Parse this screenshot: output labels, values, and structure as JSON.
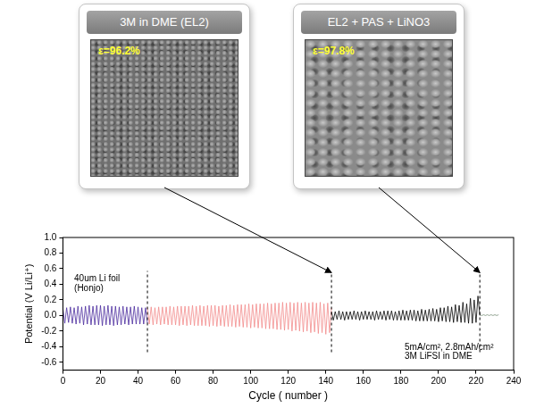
{
  "chart_data": {
    "type": "line",
    "x_label": "Cycle ( number )",
    "y_label": "Potential (V Li/Li⁺)",
    "xlim": [
      0,
      240
    ],
    "xticks": [
      0,
      20,
      40,
      60,
      80,
      100,
      120,
      140,
      160,
      180,
      200,
      220,
      240
    ],
    "ylim": [
      -0.7,
      1.0
    ],
    "yticks": [
      -0.6,
      -0.4,
      -0.2,
      {
        "value": 0,
        "label": "0.0"
      },
      0.2,
      0.4,
      0.6,
      0.8,
      {
        "value": 1,
        "label": "1.0"
      }
    ],
    "grid": false,
    "series": [
      {
        "color": "#4b2c9e",
        "x": [
          0,
          1,
          2,
          3,
          4,
          5,
          6,
          7,
          8,
          9,
          10,
          11,
          12,
          13,
          14,
          15,
          16,
          17,
          18,
          19,
          20,
          21,
          22,
          23,
          24,
          25,
          26,
          27,
          28,
          29,
          30,
          31,
          32,
          33,
          34,
          35,
          36,
          37,
          38,
          39,
          40,
          41,
          42,
          43,
          44,
          45
        ],
        "values": [
          0.09,
          -0.1,
          0.1,
          -0.09,
          0.11,
          -0.1,
          0.1,
          -0.11,
          0.12,
          -0.1,
          0.11,
          -0.12,
          0.12,
          -0.11,
          0.13,
          -0.12,
          0.12,
          -0.12,
          0.13,
          -0.12,
          0.13,
          -0.13,
          0.12,
          -0.12,
          0.13,
          -0.12,
          0.12,
          -0.13,
          0.12,
          -0.12,
          0.11,
          -0.12,
          0.12,
          -0.11,
          0.11,
          -0.12,
          0.11,
          -0.11,
          0.12,
          -0.11,
          0.11,
          -0.11,
          0.1,
          -0.11,
          0.1,
          -0.1
        ]
      },
      {
        "color": "#f28b8b",
        "x": [
          45,
          46,
          47,
          48,
          49,
          50,
          51,
          52,
          53,
          54,
          55,
          56,
          57,
          58,
          59,
          60,
          61,
          62,
          63,
          64,
          65,
          66,
          67,
          68,
          69,
          70,
          71,
          72,
          73,
          74,
          75,
          76,
          77,
          78,
          79,
          80,
          81,
          82,
          83,
          84,
          85,
          86,
          87,
          88,
          89,
          90,
          91,
          92,
          93,
          94,
          95,
          96,
          97,
          98,
          99,
          100,
          101,
          102,
          103,
          104,
          105,
          106,
          107,
          108,
          109,
          110,
          111,
          112,
          113,
          114,
          115,
          116,
          117,
          118,
          119,
          120,
          121,
          122,
          123,
          124,
          125,
          126,
          127,
          128,
          129,
          130,
          131,
          132,
          133,
          134,
          135,
          136,
          137,
          138,
          139,
          140,
          141,
          142,
          143
        ],
        "values": [
          0.1,
          -0.11,
          0.11,
          -0.12,
          0.1,
          -0.11,
          0.11,
          -0.12,
          0.11,
          -0.11,
          0.11,
          -0.12,
          0.12,
          -0.12,
          0.11,
          -0.12,
          0.12,
          -0.13,
          0.12,
          -0.12,
          0.12,
          -0.13,
          0.12,
          -0.12,
          0.13,
          -0.13,
          0.12,
          -0.13,
          0.13,
          -0.13,
          0.12,
          -0.13,
          0.13,
          -0.14,
          0.13,
          -0.13,
          0.13,
          -0.14,
          0.12,
          -0.13,
          0.13,
          -0.14,
          0.13,
          -0.14,
          0.14,
          -0.14,
          0.13,
          -0.15,
          0.14,
          -0.14,
          0.14,
          -0.15,
          0.14,
          -0.15,
          0.15,
          -0.16,
          0.14,
          -0.15,
          0.15,
          -0.16,
          0.15,
          -0.16,
          0.15,
          -0.17,
          0.16,
          -0.17,
          0.15,
          -0.17,
          0.16,
          -0.18,
          0.16,
          -0.18,
          0.17,
          -0.19,
          0.16,
          -0.18,
          0.17,
          -0.2,
          0.16,
          -0.19,
          0.17,
          -0.2,
          0.16,
          -0.21,
          0.17,
          -0.2,
          0.16,
          -0.22,
          0.17,
          -0.21,
          0.16,
          -0.23,
          0.17,
          -0.22,
          0.15,
          -0.24,
          0.16,
          -0.22,
          0.1
        ]
      },
      {
        "color": "#000000",
        "x": [
          143,
          144,
          145,
          146,
          147,
          148,
          149,
          150,
          151,
          152,
          153,
          154,
          155,
          156,
          157,
          158,
          159,
          160,
          161,
          162,
          163,
          164,
          165,
          166,
          167,
          168,
          169,
          170,
          171,
          172,
          173,
          174,
          175,
          176,
          177,
          178,
          179,
          180,
          181,
          182,
          183,
          184,
          185,
          186,
          187,
          188,
          189,
          190,
          191,
          192,
          193,
          194,
          195,
          196,
          197,
          198,
          199,
          200,
          201,
          202,
          203,
          204,
          205,
          206,
          207,
          208,
          209,
          210,
          211,
          212,
          213,
          214,
          215,
          216,
          217,
          218,
          219,
          220,
          221,
          222
        ],
        "values": [
          0.05,
          -0.06,
          0.05,
          -0.05,
          0.06,
          -0.05,
          0.05,
          -0.06,
          0.05,
          -0.05,
          0.05,
          -0.05,
          0.06,
          -0.05,
          0.05,
          -0.06,
          0.05,
          -0.05,
          0.06,
          -0.05,
          0.05,
          -0.05,
          0.05,
          -0.06,
          0.06,
          -0.05,
          0.05,
          -0.05,
          0.06,
          -0.06,
          0.06,
          -0.05,
          0.06,
          -0.06,
          0.05,
          -0.06,
          0.06,
          -0.06,
          0.07,
          -0.06,
          0.06,
          -0.06,
          0.07,
          -0.06,
          0.07,
          -0.07,
          0.06,
          -0.07,
          0.08,
          -0.07,
          0.07,
          -0.07,
          0.08,
          -0.07,
          0.09,
          -0.07,
          0.08,
          -0.08,
          0.1,
          -0.07,
          0.1,
          -0.08,
          0.12,
          -0.08,
          0.11,
          -0.09,
          0.14,
          -0.08,
          0.13,
          -0.09,
          0.17,
          -0.09,
          0.15,
          -0.1,
          0.22,
          -0.1,
          0.2,
          -0.09,
          0.25,
          0.0
        ]
      },
      {
        "color": "#7a8f7a",
        "x": [
          222,
          223,
          224,
          225,
          226,
          227,
          228,
          229,
          230,
          231,
          232
        ],
        "values": [
          0.01,
          0.0,
          0.01,
          0.0,
          0.01,
          0.0,
          0.01,
          0.0,
          0.01,
          0.0,
          0.01
        ]
      }
    ],
    "vlines": [
      {
        "x": 45,
        "y": [
          -0.47,
          0.57
        ]
      },
      {
        "x": 143,
        "y": [
          -0.47,
          0.55
        ]
      },
      {
        "x": 222,
        "y": [
          -0.47,
          0.55
        ]
      }
    ],
    "annotations": [
      {
        "text": "40um Li foil",
        "x": 6,
        "y": 0.47
      },
      {
        "text": "(Honjo)",
        "x": 6,
        "y": 0.34
      },
      {
        "text": "5mA/cm², 2.8mAh/cm²",
        "x": 182,
        "y": -0.41
      },
      {
        "text": "3M LiFSI in DME",
        "x": 182,
        "y": -0.53
      }
    ],
    "panels": [
      {
        "title": "3M in DME (EL2)",
        "label": "ε=96.2%",
        "cycle": 143
      },
      {
        "title": "EL2 + PAS + LiNO3",
        "label": "ε=97.8%",
        "cycle": 222
      }
    ]
  }
}
